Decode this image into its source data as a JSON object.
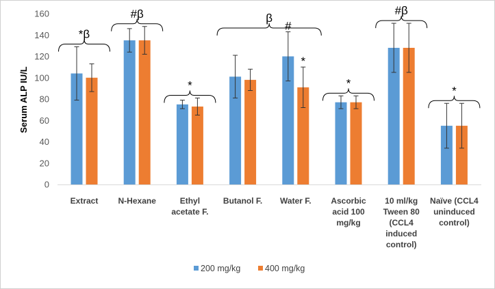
{
  "chart_data": {
    "type": "bar",
    "title": "",
    "xlabel": "",
    "ylabel": "Serum ALP IU/L",
    "ylim": [
      0,
      160
    ],
    "yticks": [
      0,
      20,
      40,
      60,
      80,
      100,
      120,
      140,
      160
    ],
    "grid": false,
    "legend_position": "bottom",
    "categories": [
      [
        "Extract"
      ],
      [
        "N-Hexane"
      ],
      [
        "Ethyl",
        "acetate F."
      ],
      [
        "Butanol F."
      ],
      [
        "Water F."
      ],
      [
        "Ascorbic",
        "acid 100",
        "mg/kg"
      ],
      [
        "10 ml/kg",
        "Tween 80",
        "(CCL4",
        "induced",
        "control)"
      ],
      [
        "Naïve (CCL4",
        "uninduced",
        "control)"
      ]
    ],
    "series": [
      {
        "name": "200 mg/kg",
        "color": "#5b9bd5",
        "values": [
          104,
          135,
          75,
          101,
          120,
          77,
          128,
          55
        ],
        "errors": [
          25,
          11,
          4,
          20,
          23,
          6,
          23,
          21
        ]
      },
      {
        "name": "400 mg/kg",
        "color": "#ed7d31",
        "values": [
          100,
          135,
          73,
          98,
          91,
          77,
          128,
          55
        ],
        "errors": [
          13,
          13,
          8,
          10,
          19,
          6,
          23,
          21
        ]
      }
    ],
    "annotations": [
      {
        "text": "*β",
        "bracket_categories": [
          0,
          0
        ]
      },
      {
        "text": "#β",
        "bracket_categories": [
          1,
          1
        ]
      },
      {
        "text": "*",
        "bracket_categories": [
          2,
          2
        ]
      },
      {
        "text": "β",
        "bracket_categories": [
          3,
          4
        ]
      },
      {
        "text": "#",
        "bar": [
          4,
          0
        ]
      },
      {
        "text": "*",
        "bar": [
          4,
          1
        ]
      },
      {
        "text": "*",
        "bracket_categories": [
          5,
          5
        ]
      },
      {
        "text": "#β",
        "bracket_categories": [
          6,
          6
        ]
      },
      {
        "text": "*",
        "bracket_categories": [
          7,
          7
        ]
      }
    ]
  }
}
